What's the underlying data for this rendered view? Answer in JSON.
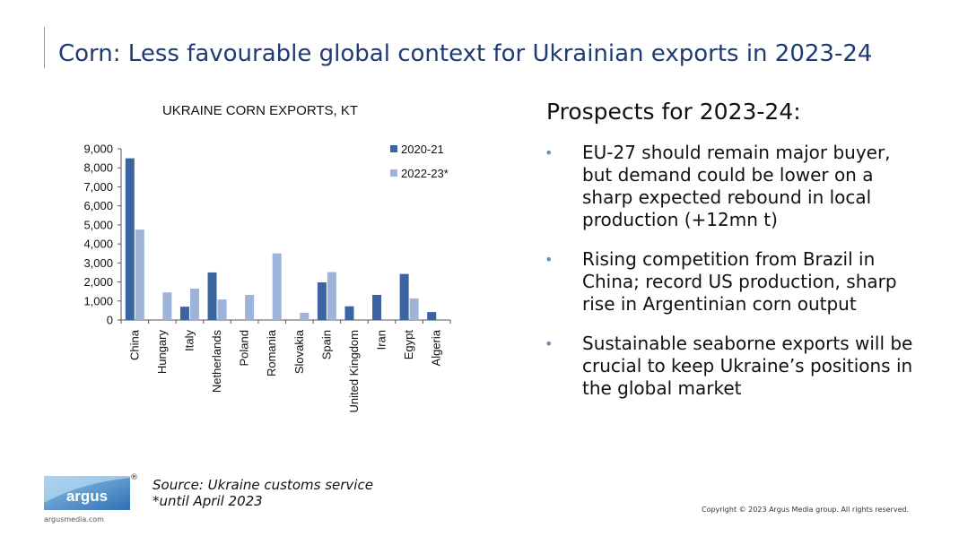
{
  "slide": {
    "title": "Corn: Less favourable global context for Ukrainian exports in 2023-24"
  },
  "chart_data": {
    "type": "bar",
    "title": "UKRAINE CORN EXPORTS, KT",
    "categories": [
      "China",
      "Hungary",
      "Italy",
      "Netherlands",
      "Poland",
      "Romania",
      "Slovakia",
      "Spain",
      "United Kingdom",
      "Iran",
      "Egypt",
      "Algeria"
    ],
    "series": [
      {
        "name": "2020-21",
        "color": "#3b64a0",
        "values": [
          8500,
          0,
          700,
          2500,
          0,
          0,
          0,
          1980,
          720,
          1320,
          2420,
          420
        ]
      },
      {
        "name": "2022-23*",
        "color": "#9db3d9",
        "values": [
          4750,
          1450,
          1650,
          1080,
          1320,
          3500,
          380,
          2520,
          0,
          0,
          1130,
          0
        ]
      }
    ],
    "ylim": [
      0,
      9000
    ],
    "yticks": [
      "0",
      "1,000",
      "2,000",
      "3,000",
      "4,000",
      "5,000",
      "6,000",
      "7,000",
      "8,000",
      "9,000"
    ],
    "legend_position": "top-right",
    "grid": false
  },
  "prospects": {
    "heading": "Prospects for 2023-24:",
    "bullet_symbol": "•",
    "bullets": [
      "EU-27 should remain major buyer, but demand could be lower on a sharp expected rebound in local production (+12mn t)",
      "Rising competition from Brazil in China; record US production, sharp rise in Argentinian corn output",
      "Sustainable seaborne exports will be crucial to keep Ukraine’s positions in the global market"
    ]
  },
  "footer": {
    "source_line1": "Source: Ukraine customs service",
    "source_line2": "*until April 2023",
    "copyright": "Copyright © 2023 Argus Media group. All rights reserved.",
    "logo_text": "argus",
    "logo_mark": "®",
    "logo_url": "argusmedia.com"
  }
}
